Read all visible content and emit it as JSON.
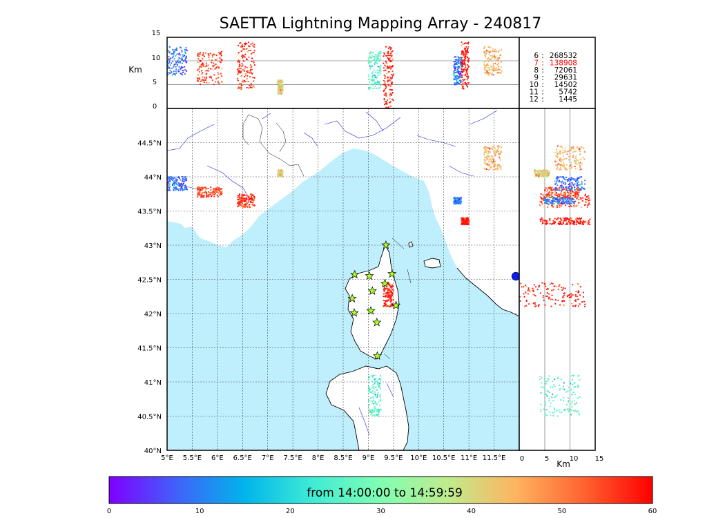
{
  "title": "SAETTA Lightning Mapping Array - 240817",
  "altitude_panel": {
    "ylabel": "Km",
    "yticks": [
      "15",
      "10",
      "5",
      "0"
    ],
    "gridlines_km": [
      5,
      10
    ]
  },
  "side_panel": {
    "xlabel": "Km",
    "xticks": [
      "0",
      "5",
      "10",
      "15"
    ]
  },
  "map": {
    "lon_range": [
      5,
      12
    ],
    "lat_range": [
      40,
      45
    ],
    "lon_ticks": [
      "5°E",
      "5.5°E",
      "6°E",
      "6.5°E",
      "7°E",
      "7.5°E",
      "8°E",
      "8.5°E",
      "9°E",
      "9.5°E",
      "10°E",
      "10.5°E",
      "11°E",
      "11.5°E"
    ],
    "lat_ticks": [
      "40°N",
      "40.5°N",
      "41°N",
      "41.5°N",
      "42°N",
      "42.5°N",
      "43°N",
      "43.5°N",
      "44°N",
      "44.5°N"
    ],
    "sea_color": "#bfeffd",
    "stations": [
      {
        "lon": 9.35,
        "lat": 43.0
      },
      {
        "lon": 8.73,
        "lat": 42.57
      },
      {
        "lon": 9.02,
        "lat": 42.55
      },
      {
        "lon": 9.47,
        "lat": 42.58
      },
      {
        "lon": 9.33,
        "lat": 42.44
      },
      {
        "lon": 9.08,
        "lat": 42.33
      },
      {
        "lon": 8.68,
        "lat": 42.22
      },
      {
        "lon": 9.55,
        "lat": 42.12
      },
      {
        "lon": 8.72,
        "lat": 42.01
      },
      {
        "lon": 9.05,
        "lat": 42.04
      },
      {
        "lon": 9.17,
        "lat": 41.87
      },
      {
        "lon": 9.18,
        "lat": 41.38
      }
    ]
  },
  "legend": [
    {
      "key": "6",
      "count": "268532",
      "color": "#000000"
    },
    {
      "key": "7",
      "count": "138908",
      "color": "#ff0000"
    },
    {
      "key": "8",
      "count": "72061",
      "color": "#000000"
    },
    {
      "key": "9",
      "count": "29631",
      "color": "#000000"
    },
    {
      "key": "10",
      "count": "14502",
      "color": "#000000"
    },
    {
      "key": "11",
      "count": "5742",
      "color": "#000000"
    },
    {
      "key": "12",
      "count": "1445",
      "color": "#000000"
    }
  ],
  "colorbar": {
    "label": "from 14:00:00 to 14:59:59",
    "ticks": [
      "0",
      "10",
      "20",
      "30",
      "40",
      "50",
      "60"
    ],
    "range": [
      0,
      60
    ],
    "colors": [
      "#7f00ff",
      "#4062fa",
      "#00b5eb",
      "#40ecd4",
      "#80feb3",
      "#c0eb8d",
      "#ffb360",
      "#ff6230",
      "#ff0000"
    ]
  },
  "chart_data": {
    "type": "scatter",
    "title": "SAETTA Lightning Mapping Array - 240817",
    "color_variable": "time (minutes from 14:00:00)",
    "clusters": [
      {
        "lon_range": [
          6.4,
          6.75
        ],
        "lat_range": [
          43.55,
          43.75
        ],
        "alt_km": [
          4,
          14
        ],
        "time_min": 57
      },
      {
        "lon_range": [
          5.6,
          6.1
        ],
        "lat_range": [
          43.7,
          43.85
        ],
        "alt_km": [
          5,
          12
        ],
        "time_min": 55
      },
      {
        "lon_range": [
          5.0,
          5.4
        ],
        "lat_range": [
          43.8,
          44.0
        ],
        "alt_km": [
          7,
          13
        ],
        "time_min": 8
      },
      {
        "lon_range": [
          9.3,
          9.5
        ],
        "lat_range": [
          42.1,
          42.45
        ],
        "alt_km": [
          0,
          13
        ],
        "time_min": 58
      },
      {
        "lon_range": [
          9.0,
          9.25
        ],
        "lat_range": [
          40.5,
          41.1
        ],
        "alt_km": [
          4,
          12
        ],
        "time_min": 25
      },
      {
        "lon_range": [
          10.85,
          11.0
        ],
        "lat_range": [
          43.3,
          43.4
        ],
        "alt_km": [
          4,
          14
        ],
        "time_min": 59
      },
      {
        "lon_range": [
          11.3,
          11.65
        ],
        "lat_range": [
          44.1,
          44.45
        ],
        "alt_km": [
          7,
          13
        ],
        "time_min": 45
      },
      {
        "lon_range": [
          7.2,
          7.3
        ],
        "lat_range": [
          44.0,
          44.1
        ],
        "alt_km": [
          3,
          6
        ],
        "time_min": 42
      },
      {
        "lon_range": [
          10.7,
          10.85
        ],
        "lat_range": [
          43.6,
          43.7
        ],
        "alt_km": [
          5,
          11
        ],
        "time_min": 10
      }
    ]
  }
}
